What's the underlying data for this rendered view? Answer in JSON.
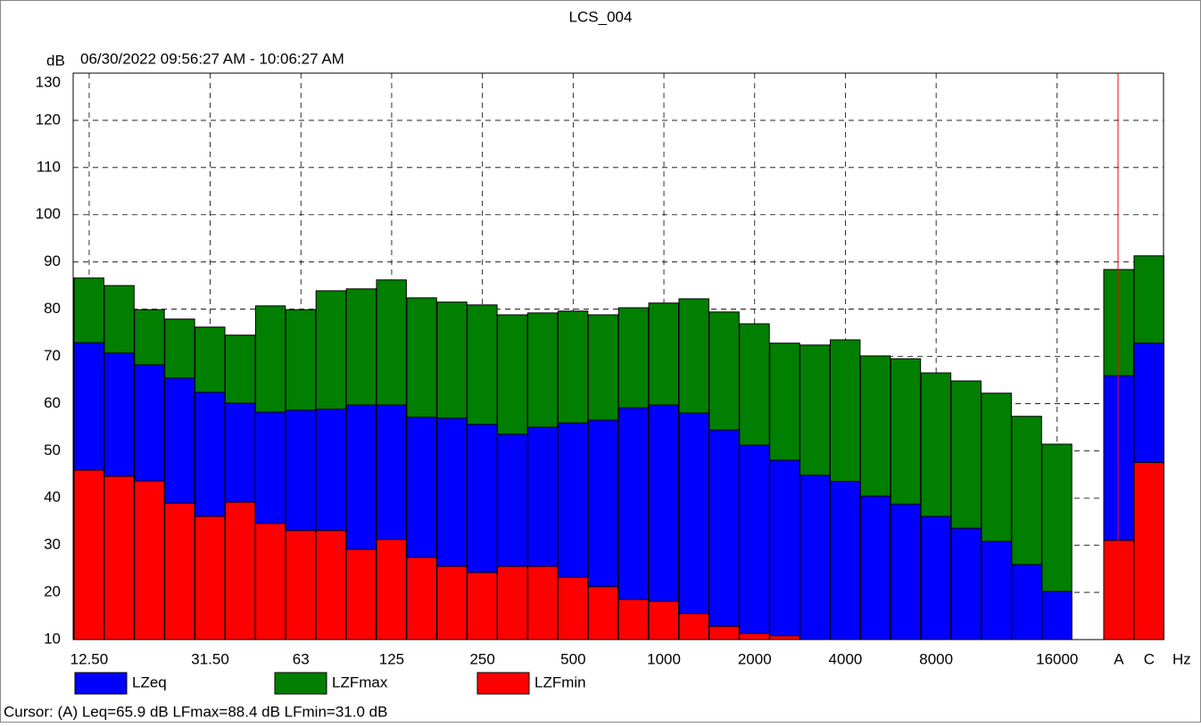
{
  "chart_data": {
    "type": "bar",
    "title": "LCS_004",
    "subtitle": "06/30/2022 09:56:27 AM - 10:06:27 AM",
    "y_label": "dB",
    "x_label": "Hz",
    "categories": [
      "12.50",
      null,
      null,
      null,
      "31.50",
      null,
      null,
      "63",
      null,
      null,
      "125",
      null,
      null,
      "250",
      null,
      null,
      "500",
      null,
      null,
      "1000",
      null,
      null,
      "2000",
      null,
      null,
      "4000",
      null,
      null,
      "8000",
      null,
      null,
      null,
      "16000",
      "A",
      "C"
    ],
    "series": [
      {
        "name": "LZFmax",
        "color": "#007f00",
        "values": [
          86.6,
          85.0,
          79.9,
          77.9,
          76.2,
          74.5,
          80.7,
          79.9,
          83.9,
          84.3,
          86.2,
          82.4,
          81.5,
          80.9,
          78.8,
          79.2,
          79.6,
          78.8,
          80.3,
          81.3,
          82.2,
          79.4,
          76.9,
          72.8,
          72.4,
          73.5,
          70.1,
          69.5,
          66.5,
          64.8,
          62.2,
          57.3,
          51.4,
          88.4,
          91.3
        ]
      },
      {
        "name": "LZeq",
        "color": "#0000ff",
        "values": [
          72.9,
          70.7,
          68.2,
          65.4,
          62.4,
          60.1,
          58.2,
          58.6,
          58.8,
          59.7,
          59.7,
          57.1,
          56.9,
          55.6,
          53.5,
          55.0,
          55.9,
          56.5,
          59.1,
          59.7,
          58.0,
          54.4,
          51.2,
          48.0,
          44.8,
          43.5,
          40.4,
          38.7,
          36.1,
          33.6,
          30.8,
          25.9,
          20.2,
          65.9,
          72.8
        ]
      },
      {
        "name": "LZFmin",
        "color": "#ff0000",
        "values": [
          45.9,
          44.6,
          43.6,
          38.9,
          36.1,
          39.1,
          34.6,
          33.1,
          33.1,
          29.1,
          31.2,
          27.4,
          25.5,
          24.2,
          25.5,
          25.5,
          23.2,
          21.2,
          18.5,
          18.1,
          15.5,
          12.8,
          11.3,
          10.8,
          null,
          null,
          null,
          null,
          null,
          null,
          null,
          null,
          null,
          31.0,
          47.5
        ]
      }
    ],
    "legend_order": [
      1,
      0,
      2
    ],
    "ylim": [
      10,
      130
    ],
    "yticks": [
      10,
      20,
      30,
      40,
      50,
      60,
      70,
      80,
      90,
      100,
      110,
      120,
      130
    ],
    "grid": true,
    "cursor_text": "Cursor: (A)  Leq=65.9 dB  LFmax=88.4 dB  LFmin=31.0 dB"
  }
}
